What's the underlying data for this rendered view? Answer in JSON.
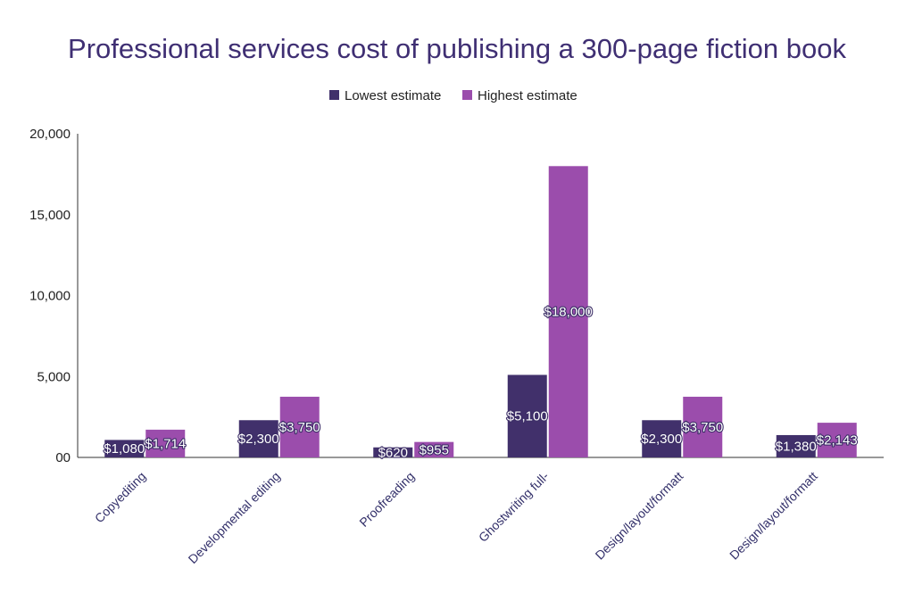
{
  "chart_data": {
    "type": "bar",
    "title": "Professional services cost of publishing a 300-page fiction book",
    "xlabel": "",
    "ylabel": "",
    "ylim": [
      0,
      20000
    ],
    "yticks": [
      "00",
      "5,000",
      "10,000",
      "15,000",
      "20,000"
    ],
    "ytick_values": [
      0,
      5000,
      10000,
      15000,
      20000
    ],
    "grid": false,
    "legend_position": "top-center",
    "categories": [
      "Copyediting",
      "Developmental editing",
      "Proofreading",
      "Ghostwriting full-",
      "Design/layout/formatt",
      "Design/layout/formatt"
    ],
    "series": [
      {
        "name": "Lowest estimate",
        "color": "#41306b",
        "values": [
          1080,
          2300,
          620,
          5100,
          2300,
          1380
        ],
        "labels": [
          "$1,080",
          "$2,300",
          "$620",
          "$5,100",
          "$2,300",
          "$1,380"
        ]
      },
      {
        "name": "Highest estimate",
        "color": "#9b4dac",
        "values": [
          1714,
          3750,
          955,
          18000,
          3750,
          2143
        ],
        "labels": [
          "$1,714",
          "$3,750",
          "$955",
          "$18,000",
          "$3,750",
          "$2,143"
        ]
      }
    ],
    "title_color": "#3f2f73"
  }
}
